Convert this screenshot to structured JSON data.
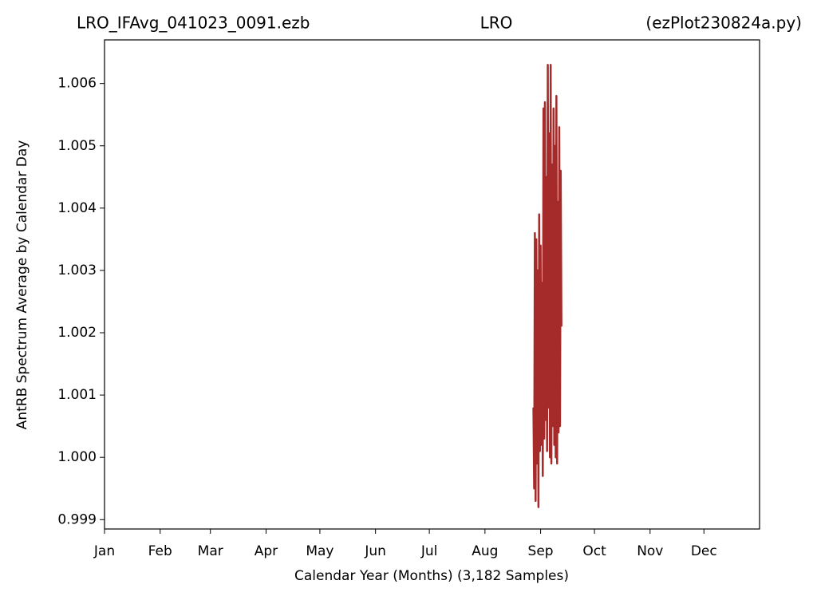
{
  "chart_data": {
    "type": "line",
    "title_left": "LRO_IFAvg_041023_0091.ezb",
    "title": "LRO",
    "title_right": "(ezPlot230824a.py)",
    "xlabel": "Calendar Year (Months) (3,182 Samples)",
    "ylabel": "AntRB Spectrum Average by Calendar Day",
    "x": [
      239.0,
      239.4,
      239.8,
      240.2,
      240.6,
      241.0,
      241.4,
      241.8,
      242.2,
      242.6,
      243.0,
      243.4,
      243.8,
      244.2,
      244.6,
      245.0,
      245.4,
      245.8,
      246.2,
      246.6,
      247.0,
      247.4,
      247.8,
      248.2,
      248.6,
      249.0,
      249.4,
      249.8,
      250.2,
      250.6,
      251.0,
      251.4,
      251.8,
      252.2,
      252.6,
      253.0,
      253.4,
      253.8,
      254.2,
      254.6
    ],
    "series": [
      {
        "color": "#a52a2a",
        "values": [
          1.0008,
          0.9995,
          1.0036,
          0.9993,
          1.0035,
          0.9999,
          1.003,
          0.9992,
          1.0039,
          1.0001,
          1.0034,
          1.0002,
          1.0028,
          0.9997,
          1.0056,
          1.0003,
          1.0057,
          1.0006,
          1.0045,
          1.0001,
          1.0063,
          1.0008,
          1.0052,
          1.0,
          1.0063,
          0.9999,
          1.0047,
          1.0005,
          1.0056,
          1.0002,
          1.005,
          1.0,
          1.0058,
          0.9999,
          1.0041,
          1.0004,
          1.0053,
          1.0005,
          1.0046,
          1.0021
        ]
      }
    ],
    "xlim": [
      0,
      365
    ],
    "xticks": [
      {
        "value": 0,
        "label": "Jan"
      },
      {
        "value": 31,
        "label": "Feb"
      },
      {
        "value": 59,
        "label": "Mar"
      },
      {
        "value": 90,
        "label": "Apr"
      },
      {
        "value": 120,
        "label": "May"
      },
      {
        "value": 151,
        "label": "Jun"
      },
      {
        "value": 181,
        "label": "Jul"
      },
      {
        "value": 212,
        "label": "Aug"
      },
      {
        "value": 243,
        "label": "Sep"
      },
      {
        "value": 273,
        "label": "Oct"
      },
      {
        "value": 304,
        "label": "Nov"
      },
      {
        "value": 334,
        "label": "Dec"
      }
    ],
    "ylim": [
      0.99885,
      1.0067
    ],
    "yticks": [
      0.999,
      {
        "value": 1,
        "label": "1.000"
      },
      1.001,
      1.002,
      1.003,
      1.004,
      1.005,
      1.006
    ]
  }
}
